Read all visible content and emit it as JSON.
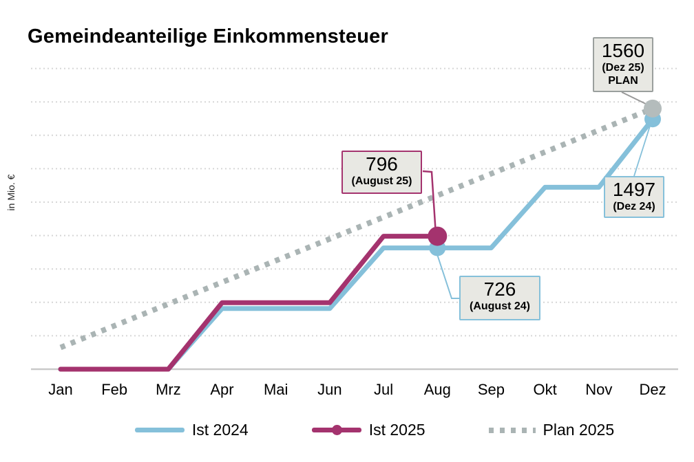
{
  "title": "Gemeindeanteilige Einkommensteuer",
  "y_axis_label": "in Mio. €",
  "colors": {
    "blue": "#85c0da",
    "magenta": "#a4336e",
    "plan_gray": "#aab4b4",
    "grid": "#d6d6d6",
    "axis": "#c9c9c9",
    "box_fill": "#e8e8e3",
    "box_border_gray": "#9a9f9d",
    "leader_gray": "#999999"
  },
  "chart_data": {
    "type": "line",
    "title": "Gemeindeanteilige Einkommensteuer",
    "ylabel": "in Mio. €",
    "xlabel": "",
    "categories": [
      "Jan",
      "Feb",
      "Mrz",
      "Apr",
      "Mai",
      "Jun",
      "Jul",
      "Aug",
      "Sep",
      "Okt",
      "Nov",
      "Dez"
    ],
    "series": [
      {
        "name": "Ist 2024",
        "color": "#85c0da",
        "width": 7,
        "dash": "",
        "values": [
          0,
          0,
          0,
          363,
          363,
          363,
          726,
          726,
          726,
          1089,
          1089,
          1497
        ]
      },
      {
        "name": "Ist 2025",
        "color": "#a4336e",
        "width": 7,
        "dash": "",
        "values": [
          0,
          0,
          0,
          398,
          398,
          398,
          796,
          796,
          null,
          null,
          null,
          null
        ]
      },
      {
        "name": "Plan 2025",
        "color": "#aab4b4",
        "width": 8,
        "dash": "7 9",
        "values": [
          130,
          260,
          390,
          520,
          650,
          780,
          910,
          1040,
          1170,
          1300,
          1430,
          1560
        ]
      }
    ],
    "markers": [
      {
        "name": "ist2024-dez-point",
        "month_index": 11,
        "value": 1497,
        "r": 12,
        "color": "#85c0da"
      },
      {
        "name": "plan2025-dez-point",
        "month_index": 11,
        "value": 1560,
        "r": 13,
        "color": "#b4bcbc"
      },
      {
        "name": "ist2024-aug-point",
        "month_index": 7,
        "value": 726,
        "r": 12,
        "color": "#85c0da"
      },
      {
        "name": "ist2025-aug-point",
        "month_index": 7,
        "value": 796,
        "r": 14,
        "color": "#a4336e"
      }
    ],
    "gridline_values": [
      200,
      400,
      600,
      800,
      1000,
      1200,
      1400,
      1600,
      1800
    ],
    "ylim": [
      0,
      1850
    ],
    "grid": true,
    "legend_position": "bottom",
    "annotated_points": [
      {
        "label": "1560",
        "detail": "(Dez 25)",
        "detail2": "PLAN",
        "series": "Plan 2025",
        "month": "Dez"
      },
      {
        "label": "796",
        "detail": "(August 25)",
        "series": "Ist 2025",
        "month": "Aug"
      },
      {
        "label": "726",
        "detail": "(August 24)",
        "series": "Ist 2024",
        "month": "Aug"
      },
      {
        "label": "1497",
        "detail": "(Dez 24)",
        "series": "Ist 2024",
        "month": "Dez"
      }
    ]
  },
  "annotations": [
    {
      "value": "1560",
      "sub": "(Dez 25)",
      "sub2": "PLAN"
    },
    {
      "value": "796",
      "sub": "(August 25)"
    },
    {
      "value": "726",
      "sub": "(August 24)"
    },
    {
      "value": "1497",
      "sub": "(Dez 24)"
    }
  ],
  "legend": [
    {
      "label": "Ist 2024"
    },
    {
      "label": "Ist 2025"
    },
    {
      "label": "Plan 2025"
    }
  ]
}
